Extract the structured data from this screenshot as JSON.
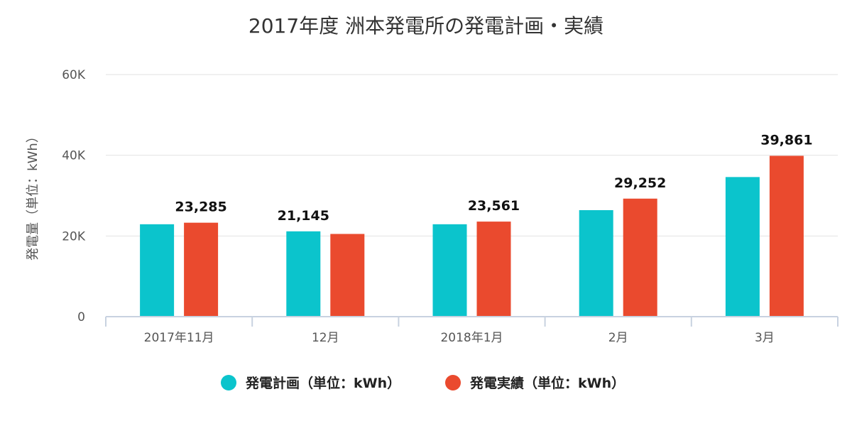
{
  "chart_data": {
    "type": "bar",
    "title": "2017年度 洲本発電所の発電計画・実績",
    "xlabel": "",
    "ylabel": "発電量（単位：kWh）",
    "categories": [
      "2017年11月",
      "12月",
      "2018年1月",
      "2月",
      "3月"
    ],
    "ylim": [
      0,
      60000
    ],
    "yticks": [
      0,
      20000,
      40000,
      60000
    ],
    "ytick_labels": [
      "0",
      "20K",
      "40K",
      "60K"
    ],
    "grid": true,
    "legend_position": "bottom",
    "series": [
      {
        "name": "発電計画（単位：kWh）",
        "color": "#0bc4cc",
        "values": [
          22900,
          21145,
          22900,
          26400,
          34600
        ],
        "data_labels": [
          null,
          "21,145",
          null,
          null,
          null
        ]
      },
      {
        "name": "発電実績（単位：kWh）",
        "color": "#ea4a2e",
        "values": [
          23285,
          20500,
          23561,
          29252,
          39861
        ],
        "data_labels": [
          "23,285",
          null,
          "23,561",
          "29,252",
          "39,861"
        ]
      }
    ]
  }
}
